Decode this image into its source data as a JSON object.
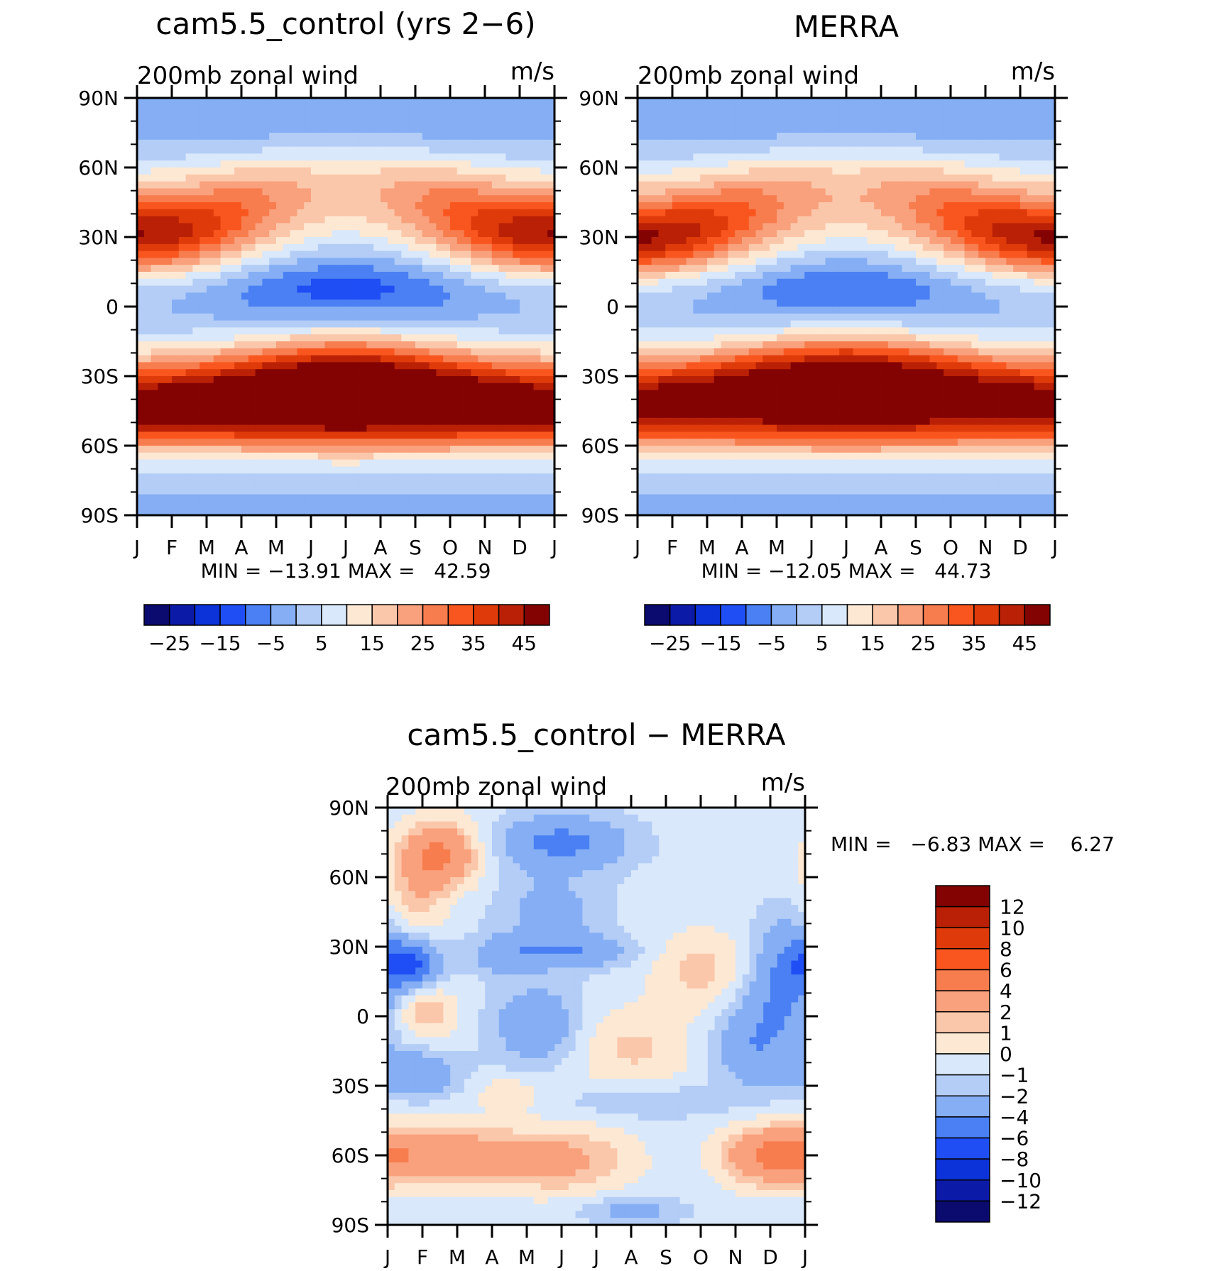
{
  "chart_data": [
    {
      "type": "heatmap",
      "title": "cam5.5_control (yrs 2−6)",
      "subtitle_left": "200mb zonal wind",
      "subtitle_right": "m/s",
      "x_ticklabels": [
        "J",
        "F",
        "M",
        "A",
        "M",
        "J",
        "J",
        "A",
        "S",
        "O",
        "N",
        "D",
        "J"
      ],
      "y_ticklabels": [
        "90N",
        "60N",
        "30N",
        "0",
        "30S",
        "60S",
        "90S"
      ],
      "y_values": [
        90,
        60,
        30,
        0,
        -30,
        -60,
        -90
      ],
      "stats_text": "MIN = −13.91 MAX =   42.59",
      "min": -13.91,
      "max": 42.59,
      "colorbar": {
        "orientation": "horizontal",
        "levels": [
          -25,
          -20,
          -15,
          -10,
          -5,
          0,
          5,
          10,
          15,
          20,
          25,
          30,
          35,
          40,
          45
        ],
        "labels": [
          "−25",
          "−15",
          "−5",
          "5",
          "15",
          "25",
          "35",
          "45"
        ]
      },
      "field": {
        "shape": "annual_cycle_jets",
        "nh_jet_lat": 31,
        "nh_jet_winter": 44,
        "nh_jet_summer": 12,
        "sh_jet_lat": -30,
        "sh_jet_winter": 41,
        "sh_jet_summer": 30,
        "sh_polar_jet_lat": -50,
        "sh_polar_jet": 31,
        "tropical_easterly_min": -13.91,
        "tropical_max": 42.59
      }
    },
    {
      "type": "heatmap",
      "title": "MERRA",
      "subtitle_left": "200mb zonal wind",
      "subtitle_right": "m/s",
      "x_ticklabels": [
        "J",
        "F",
        "M",
        "A",
        "M",
        "J",
        "J",
        "A",
        "S",
        "O",
        "N",
        "D",
        "J"
      ],
      "y_ticklabels": [
        "90N",
        "60N",
        "30N",
        "0",
        "30S",
        "60S",
        "90S"
      ],
      "y_values": [
        90,
        60,
        30,
        0,
        -30,
        -60,
        -90
      ],
      "stats_text": "MIN = −12.05 MAX =   44.73",
      "min": -12.05,
      "max": 44.73,
      "colorbar": {
        "orientation": "horizontal",
        "levels": [
          -25,
          -20,
          -15,
          -10,
          -5,
          0,
          5,
          10,
          15,
          20,
          25,
          30,
          35,
          40,
          45
        ],
        "labels": [
          "−25",
          "−15",
          "−5",
          "5",
          "15",
          "25",
          "35",
          "45"
        ]
      },
      "field": {
        "shape": "annual_cycle_jets",
        "nh_jet_lat": 30,
        "nh_jet_winter": 45,
        "nh_jet_summer": 14,
        "sh_jet_lat": -29,
        "sh_jet_winter": 40,
        "sh_jet_summer": 30,
        "sh_polar_jet_lat": -50,
        "sh_polar_jet": 28,
        "tropical_easterly_min": -12.05,
        "tropical_max": 44.73
      }
    },
    {
      "type": "heatmap",
      "title": "cam5.5_control − MERRA",
      "subtitle_left": "200mb zonal wind",
      "subtitle_right": "m/s",
      "x_ticklabels": [
        "J",
        "F",
        "M",
        "A",
        "M",
        "J",
        "J",
        "A",
        "S",
        "O",
        "N",
        "D",
        "J"
      ],
      "y_ticklabels": [
        "90N",
        "60N",
        "30N",
        "0",
        "30S",
        "60S",
        "90S"
      ],
      "y_values": [
        90,
        60,
        30,
        0,
        -30,
        -60,
        -90
      ],
      "stats_text": "MIN =   −6.83 MAX =    6.27",
      "min": -6.83,
      "max": 6.27,
      "colorbar": {
        "orientation": "vertical",
        "levels": [
          -12,
          -10,
          -8,
          -6,
          -4,
          -2,
          -1,
          0,
          1,
          2,
          4,
          6,
          8,
          10,
          12
        ],
        "labels": [
          "12",
          "10",
          "8",
          "6",
          "4",
          "2",
          "1",
          "0",
          "−1",
          "−2",
          "−4",
          "−6",
          "−8",
          "−10",
          "−12"
        ]
      },
      "field": {
        "shape": "difference_anomalies",
        "anomalies": [
          {
            "month": 1.5,
            "lat": 70,
            "value": 5,
            "w": 0.8,
            "h": 10
          },
          {
            "month": 0.8,
            "lat": 50,
            "value": 2,
            "w": 0.6,
            "h": 12
          },
          {
            "month": 5.0,
            "lat": 75,
            "value": -4,
            "w": 1.3,
            "h": 8
          },
          {
            "month": 4.7,
            "lat": 45,
            "value": -2,
            "w": 1.1,
            "h": 12
          },
          {
            "month": 0.6,
            "lat": 23,
            "value": -6,
            "w": 0.6,
            "h": 7
          },
          {
            "month": 3.3,
            "lat": 26,
            "value": -2,
            "w": 0.7,
            "h": 6
          },
          {
            "month": 5.3,
            "lat": 28,
            "value": -3,
            "w": 1.2,
            "h": 5
          },
          {
            "month": 9.0,
            "lat": 20,
            "value": 2,
            "w": 1.0,
            "h": 12
          },
          {
            "month": 11.5,
            "lat": 16,
            "value": -4,
            "w": 0.7,
            "h": 18
          },
          {
            "month": 1.0,
            "lat": 2,
            "value": 2.5,
            "w": 0.7,
            "h": 8
          },
          {
            "month": 4.3,
            "lat": -4,
            "value": -3,
            "w": 0.9,
            "h": 12
          },
          {
            "month": 7.0,
            "lat": -14,
            "value": 1.8,
            "w": 1.3,
            "h": 12
          },
          {
            "month": 10.5,
            "lat": -12,
            "value": -3,
            "w": 0.8,
            "h": 14
          },
          {
            "month": 0.9,
            "lat": -25,
            "value": -3,
            "w": 0.8,
            "h": 7
          },
          {
            "month": 3.5,
            "lat": -33,
            "value": 1.5,
            "w": 0.7,
            "h": 5
          },
          {
            "month": 7.5,
            "lat": -37,
            "value": -1.5,
            "w": 1.6,
            "h": 5
          },
          {
            "month": 1.5,
            "lat": -60,
            "value": 4,
            "w": 1.5,
            "h": 9
          },
          {
            "month": 5.0,
            "lat": -62,
            "value": 3,
            "w": 1.4,
            "h": 10
          },
          {
            "month": 11.0,
            "lat": -60,
            "value": 4.5,
            "w": 1.0,
            "h": 9
          },
          {
            "month": 7.0,
            "lat": -84,
            "value": -2,
            "w": 1.0,
            "h": 4
          }
        ]
      }
    }
  ]
}
